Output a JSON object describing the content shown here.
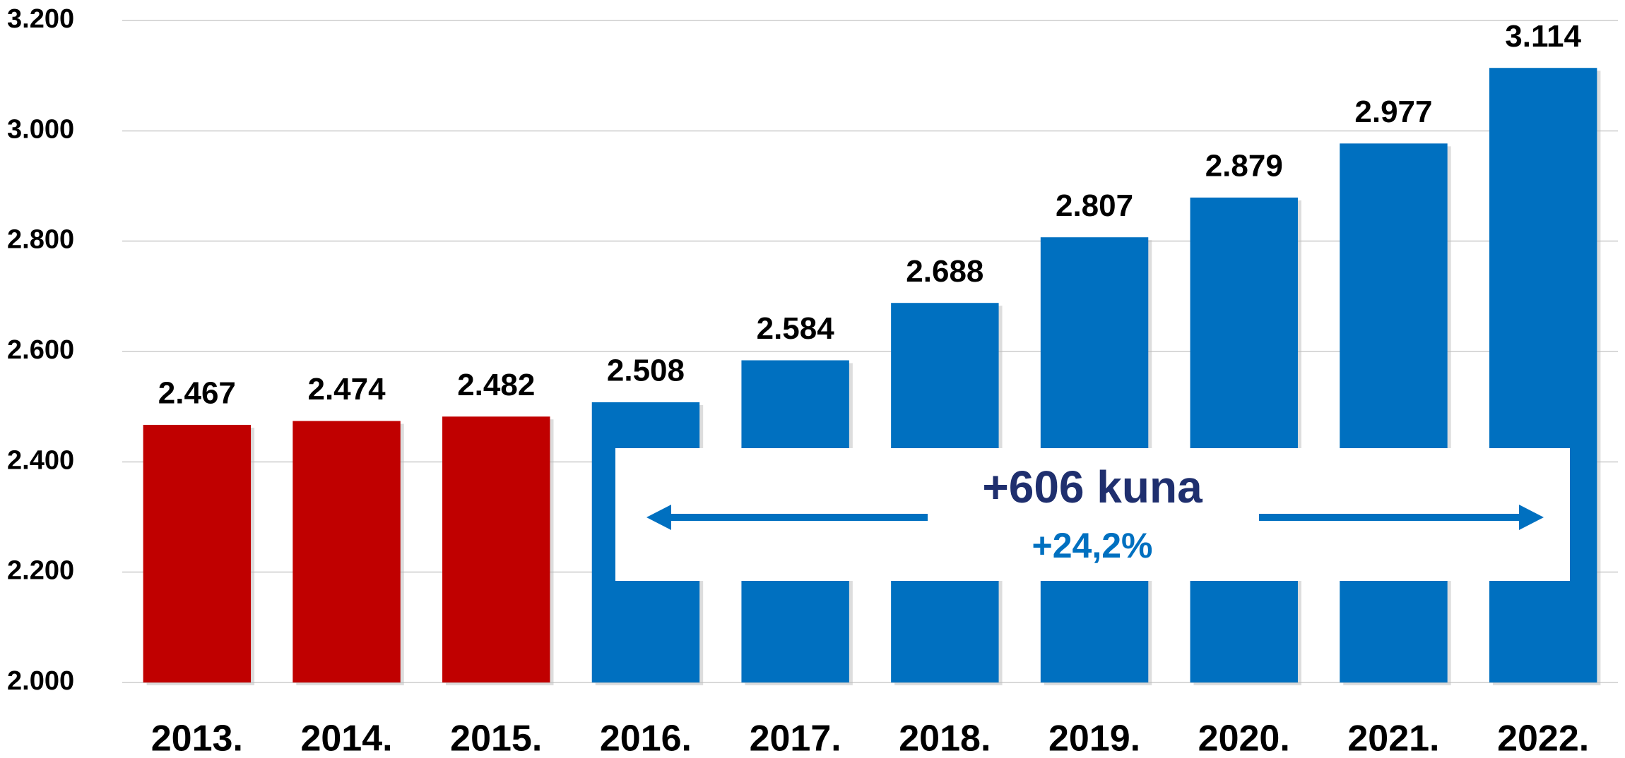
{
  "chart_data": {
    "type": "bar",
    "categories": [
      "2013.",
      "2014.",
      "2015.",
      "2016.",
      "2017.",
      "2018.",
      "2019.",
      "2020.",
      "2021.",
      "2022."
    ],
    "values": [
      2467,
      2474,
      2482,
      2508,
      2584,
      2688,
      2807,
      2879,
      2977,
      3114
    ],
    "value_labels": [
      "2.467",
      "2.474",
      "2.482",
      "2.508",
      "2.584",
      "2.688",
      "2.807",
      "2.879",
      "2.977",
      "3.114"
    ],
    "colors": [
      "#C00000",
      "#C00000",
      "#C00000",
      "#0070C0",
      "#0070C0",
      "#0070C0",
      "#0070C0",
      "#0070C0",
      "#0070C0",
      "#0070C0"
    ],
    "ylim": [
      2000,
      3200
    ],
    "yticks": [
      {
        "value": 2000,
        "label": "2.000"
      },
      {
        "value": 2200,
        "label": "2.200"
      },
      {
        "value": 2400,
        "label": "2.400"
      },
      {
        "value": 2600,
        "label": "2.600"
      },
      {
        "value": 2800,
        "label": "2.800"
      },
      {
        "value": 3000,
        "label": "3.000"
      },
      {
        "value": 3200,
        "label": "3.200"
      }
    ],
    "grid": true,
    "annotations": [
      "+606 kuna",
      "+24,2%"
    ]
  }
}
